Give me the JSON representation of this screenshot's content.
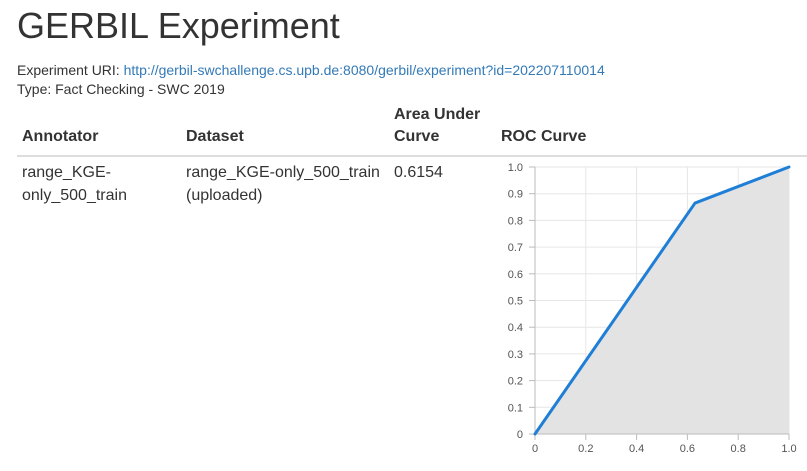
{
  "page": {
    "title": "GERBIL Experiment",
    "uri_label": "Experiment URI:",
    "uri_link": "http://gerbil-swchallenge.cs.upb.de:8080/gerbil/experiment?id=202207110014",
    "type_line": "Type: Fact Checking - SWC 2019"
  },
  "table": {
    "headers": {
      "annotator": "Annotator",
      "dataset": "Dataset",
      "auc_line1": "Area Under",
      "auc_line2": "Curve",
      "roc": "ROC Curve"
    },
    "row": {
      "annotator_line1": "range_KGE-",
      "annotator_line2": "only_500_train",
      "dataset_line1": "range_KGE-only_500_train",
      "dataset_line2": "(uploaded)",
      "auc": "0.6154"
    }
  },
  "colors": {
    "line": "#1f7fd6",
    "area": "#e3e3e3",
    "grid": "#e6e6e6",
    "link": "#337ab7"
  },
  "chart_data": {
    "type": "area",
    "title": "",
    "xlabel": "",
    "ylabel": "",
    "xlim": [
      0,
      1
    ],
    "ylim": [
      0,
      1
    ],
    "x_ticks": [
      "0",
      "0.2",
      "0.4",
      "0.6",
      "0.8",
      "1.0"
    ],
    "y_ticks": [
      "0",
      "0.1",
      "0.2",
      "0.3",
      "0.4",
      "0.5",
      "0.6",
      "0.7",
      "0.8",
      "0.9",
      "1.0"
    ],
    "series": [
      {
        "name": "ROC",
        "x": [
          0,
          0.63,
          1.0
        ],
        "y": [
          0,
          0.865,
          1.0
        ]
      }
    ],
    "grid": true
  }
}
